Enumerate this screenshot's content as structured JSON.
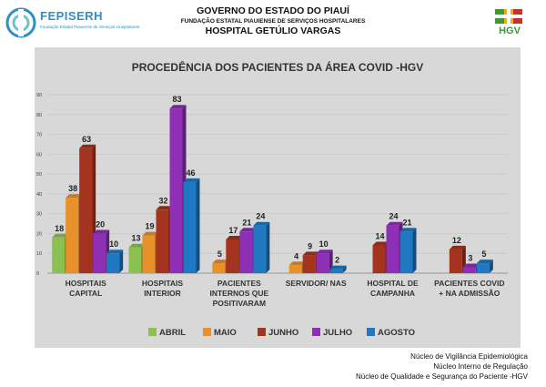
{
  "header": {
    "government": "GOVERNO DO ESTADO DO PIAUÍ",
    "foundation": "FUNDAÇÃO ESTATAL PIAUIENSE DE SERVIÇOS HOSPITALARES",
    "hospital": "HOSPITAL GETÚLIO VARGAS"
  },
  "logo_left": {
    "brand": "FEPISERH",
    "subtitle": "Fundação Estatal Piauiense de Serviços Hospitalares"
  },
  "logo_right": {
    "brand": "HGV",
    "icon": "hgv-logo-icon"
  },
  "colors": {
    "ABRIL": "#8cc152",
    "MAIO": "#e8902a",
    "JUNHO": "#a4341f",
    "JULHO": "#8e2fb5",
    "AGOSTO": "#1f78c1",
    "panel": "#d8d8d8"
  },
  "chart_data": {
    "type": "bar",
    "title": "PROCEDÊNCIA DOS PACIENTES DA ÁREA COVID -HGV",
    "xlabel": "",
    "ylabel": "",
    "ylim": [
      0,
      90
    ],
    "yticks": [
      0,
      10,
      20,
      30,
      40,
      50,
      60,
      70,
      80,
      90
    ],
    "grid": true,
    "legend_position": "bottom",
    "categories": [
      [
        "HOSPITAIS",
        "CAPITAL"
      ],
      [
        "HOSPITAIS",
        "INTERIOR"
      ],
      [
        "PACIENTES",
        "INTERNOS QUE",
        "POSITIVARAM"
      ],
      [
        "SERVIDOR/ NAS"
      ],
      [
        "HOSPITAL DE",
        "CAMPANHA"
      ],
      [
        "PACIENTES COVID",
        "+ NA ADMISSÃO"
      ]
    ],
    "series": [
      {
        "name": "ABRIL",
        "values": [
          18,
          13,
          null,
          null,
          null,
          null
        ]
      },
      {
        "name": "MAIO",
        "values": [
          38,
          19,
          5,
          4,
          null,
          null
        ]
      },
      {
        "name": "JUNHO",
        "values": [
          63,
          32,
          17,
          9,
          14,
          12
        ]
      },
      {
        "name": "JULHO",
        "values": [
          20,
          83,
          21,
          10,
          24,
          3
        ]
      },
      {
        "name": "AGOSTO",
        "values": [
          10,
          46,
          24,
          2,
          21,
          5
        ]
      }
    ]
  },
  "footer": {
    "lines": [
      "Núcleo de Vigilância Epidemiológica",
      "Núcleo Interno de Regulação",
      "Núcleo de Qualidade e Segurança do Paciente -HGV"
    ]
  }
}
